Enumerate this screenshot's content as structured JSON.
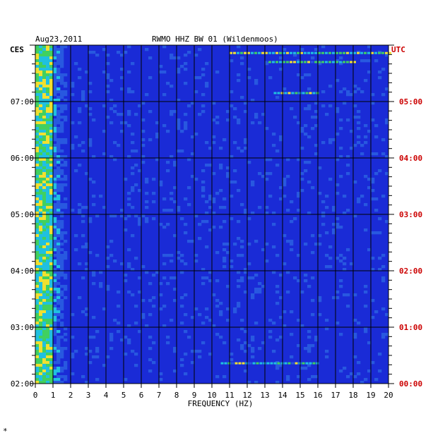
{
  "header": {
    "date": "Aug23,2011",
    "title": "RWMO HHZ BW 01 (Wildenmoos)",
    "left_zone": "CES",
    "right_zone": "UTC"
  },
  "footer": {
    "mark": "*"
  },
  "chart_data": {
    "type": "heatmap",
    "title": "RWMO HHZ BW 01 (Wildenmoos)",
    "date": "Aug23,2011",
    "xlabel": "FREQUENCY (HZ)",
    "xlim": [
      0,
      20
    ],
    "x_ticks": [
      "0",
      "1",
      "2",
      "3",
      "4",
      "5",
      "6",
      "7",
      "8",
      "9",
      "10",
      "11",
      "12",
      "13",
      "14",
      "15",
      "16",
      "17",
      "18",
      "19",
      "20"
    ],
    "y_left_label": "CES",
    "y_left_ticks": [
      "02:00",
      "03:00",
      "04:00",
      "05:00",
      "06:00",
      "07:00"
    ],
    "y_right_label": "UTC",
    "y_right_ticks": [
      "00:00",
      "01:00",
      "02:00",
      "03:00",
      "04:00",
      "05:00"
    ],
    "ylim_hours": [
      2.0,
      8.0
    ],
    "colors": {
      "background": "#1a2bd6",
      "grid": "#000000",
      "left_axis_text": "#000000",
      "right_axis_text": "#cc0000",
      "low": "#1020c8",
      "mid": "#20c0e0",
      "high_green": "#40d060",
      "high_yellow": "#f0e030",
      "high_red": "#e02010"
    }
  }
}
